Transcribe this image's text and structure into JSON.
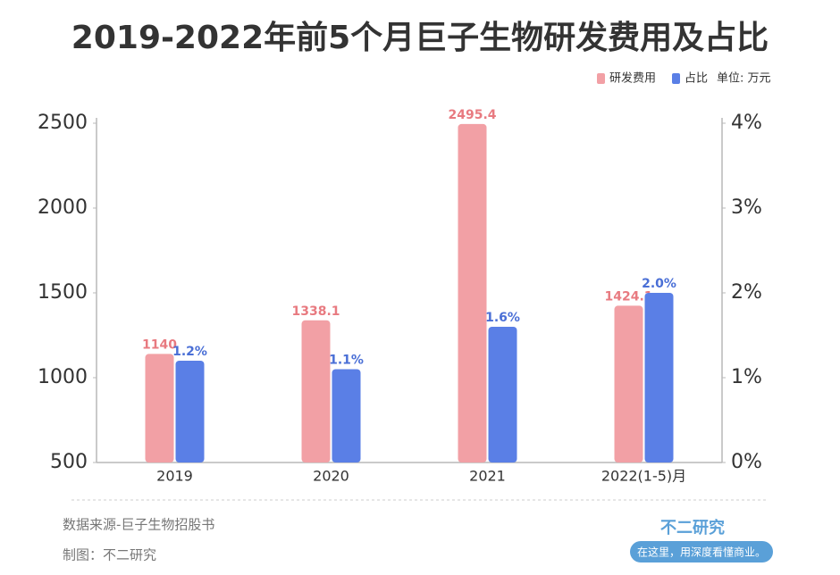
{
  "chart_data": {
    "type": "bar",
    "title": "2019-2022年前5个月巨子生物研发费用及占比",
    "unit_label": "单位: 万元",
    "categories": [
      "2019",
      "2020",
      "2021",
      "2022(1-5)月"
    ],
    "series": [
      {
        "name": "研发费用",
        "color": "#f2a0a5",
        "values": [
          1140,
          1338.1,
          2495.4,
          1424.1
        ]
      },
      {
        "name": "占比",
        "color": "#5a7fe6",
        "axis": "y2",
        "values": [
          1.2,
          1.1,
          1.6,
          2.0
        ],
        "value_labels": [
          "1.2%",
          "1.1%",
          "1.6%",
          "2.0%"
        ]
      }
    ],
    "ylim": [
      500,
      2500
    ],
    "yticks": [
      500,
      1000,
      1500,
      2000,
      2500
    ],
    "y2lim": [
      0,
      4
    ],
    "y2ticks": [
      {
        "value": 0,
        "label": "0%"
      },
      {
        "value": 1,
        "label": "1%"
      },
      {
        "value": 2,
        "label": "2%"
      },
      {
        "value": 3,
        "label": "3%"
      },
      {
        "value": 4,
        "label": "4%"
      }
    ],
    "legend": "top-right",
    "grid": false
  },
  "footer": {
    "source": "数据来源-巨子生物招股书",
    "credit": "制图：不二研究",
    "brand": "不二研究",
    "slogan": "在这里，用深度看懂商业。"
  }
}
